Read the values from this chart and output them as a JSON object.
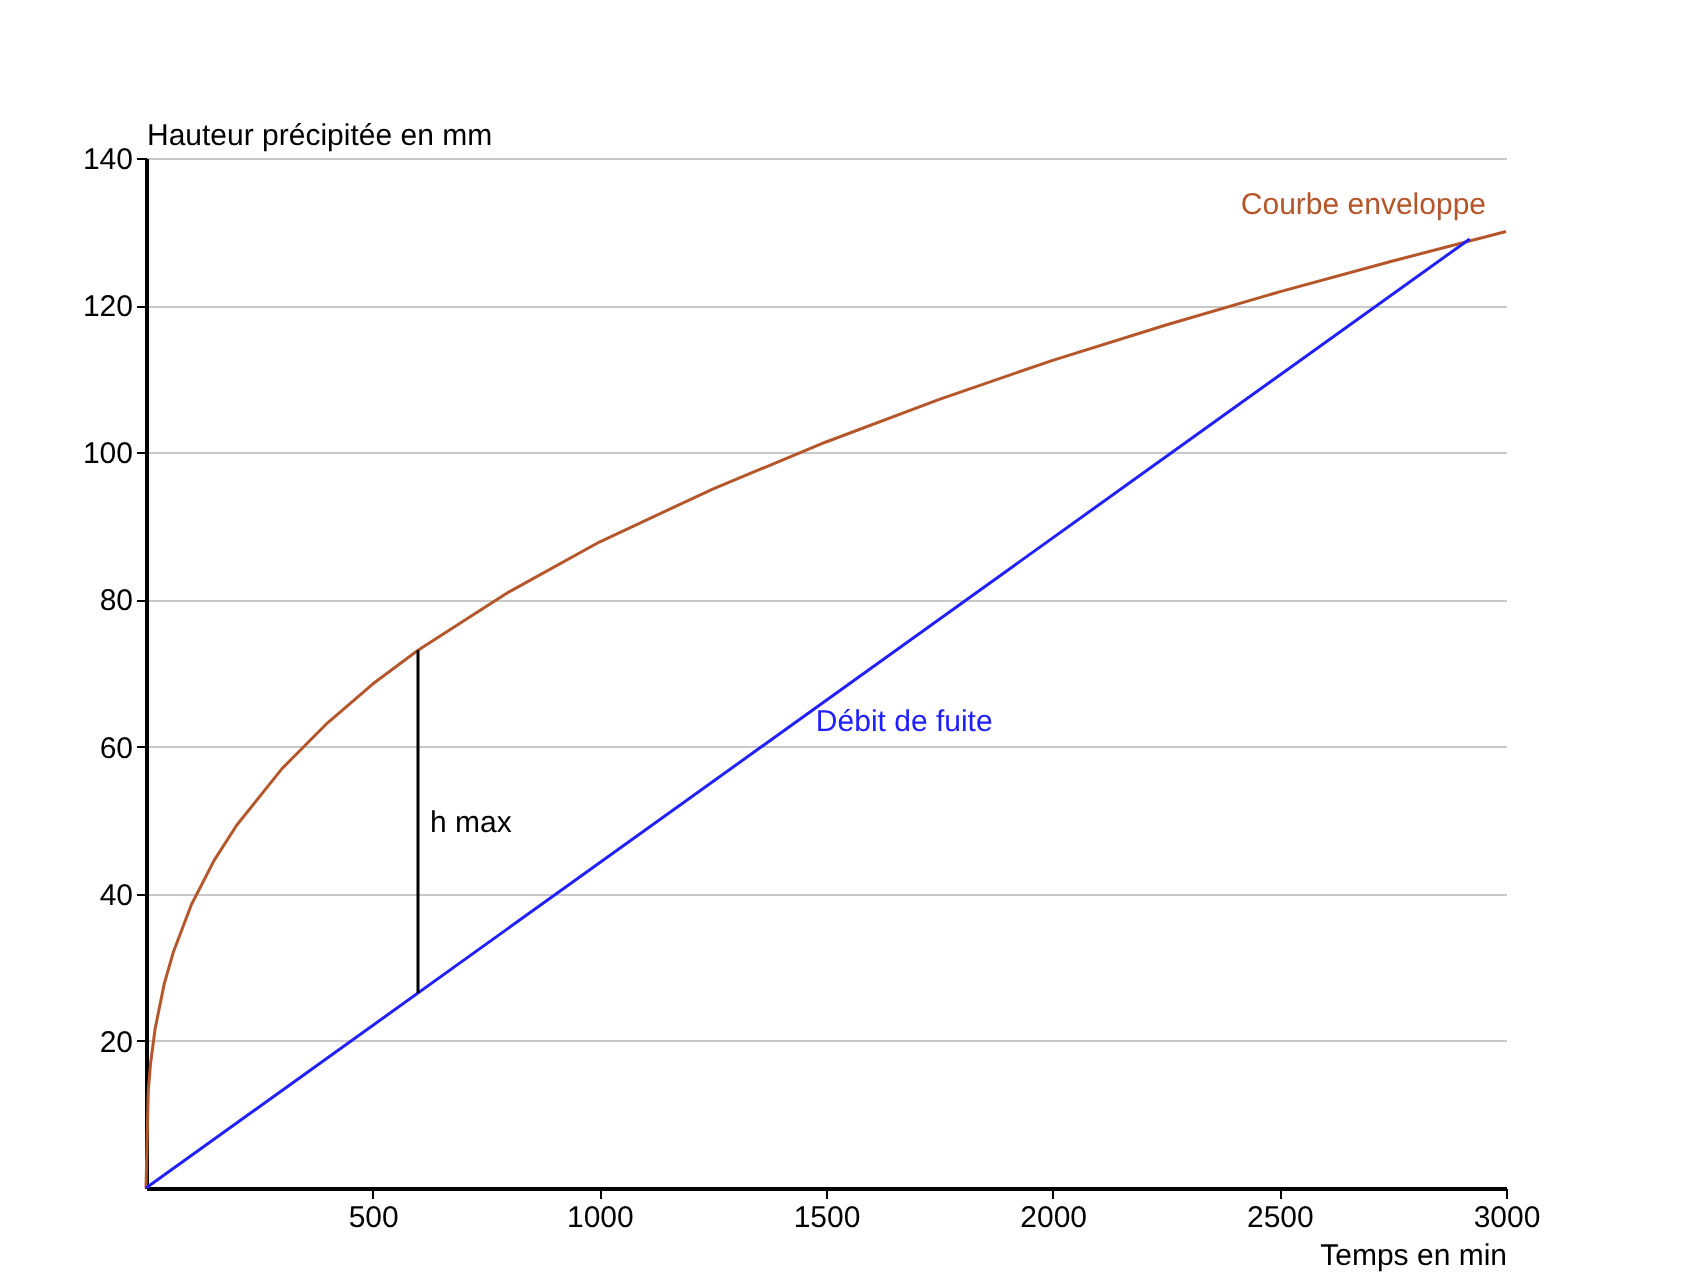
{
  "chart_data": {
    "type": "line",
    "xlabel": "Temps en min",
    "ylabel": "Hauteur précipitée en mm",
    "xlim": [
      0,
      3000
    ],
    "xticks": [
      500,
      1000,
      1500,
      2000,
      2500,
      3000
    ],
    "ylim": [
      0,
      140
    ],
    "yticks": [
      20,
      40,
      60,
      80,
      100,
      120,
      140
    ],
    "grid": "y",
    "legend": false,
    "marker": "none",
    "line_style": "solid",
    "series": [
      {
        "name": "Courbe enveloppe",
        "color": "#b5562a",
        "x": [
          0,
          5,
          10,
          20,
          40,
          60,
          100,
          150,
          200,
          300,
          400,
          500,
          600,
          800,
          1000,
          1250,
          1500,
          1750,
          2000,
          2250,
          2500,
          2750,
          3000
        ],
        "values": [
          0,
          13.2,
          16.9,
          21.6,
          27.7,
          32.0,
          38.5,
          44.5,
          49.3,
          57.0,
          63.2,
          68.5,
          73.1,
          81.0,
          87.8,
          95.0,
          101.4,
          107.2,
          112.5,
          117.3,
          121.8,
          126.0,
          130.0
        ]
      },
      {
        "name": "Débit de fuite",
        "color": "#2020ff",
        "x": [
          0,
          2920
        ],
        "values": [
          0,
          129
        ]
      },
      {
        "color": "#000000",
        "x": [
          600,
          600
        ],
        "values": [
          26.5,
          73.1
        ]
      }
    ],
    "annotations": [
      "h max"
    ]
  }
}
